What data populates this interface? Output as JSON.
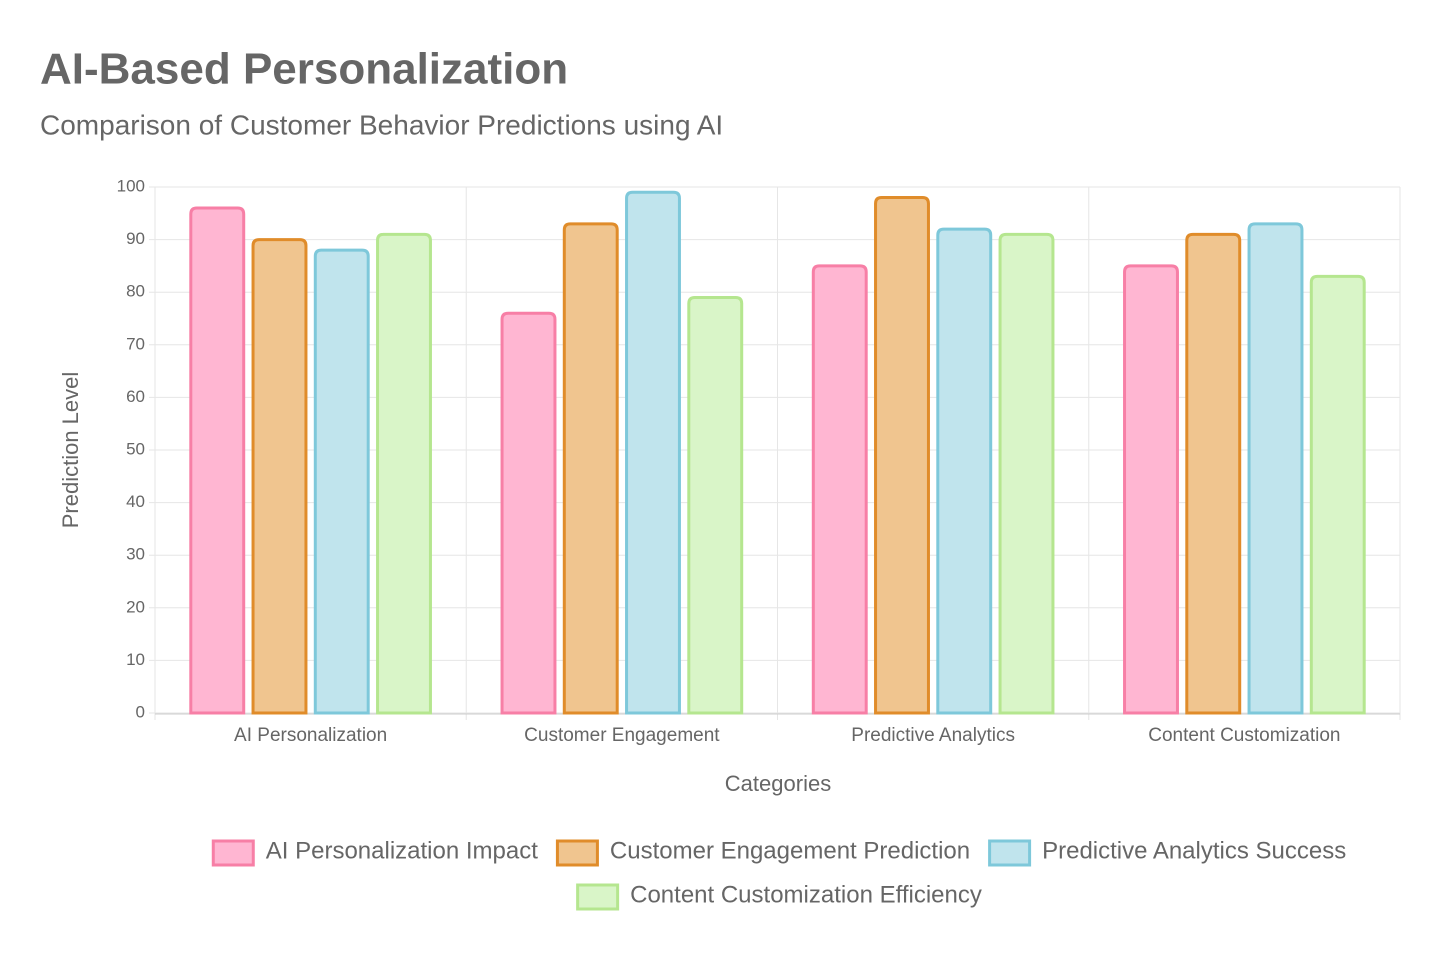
{
  "chart_data": {
    "type": "bar",
    "title": "AI-Based Personalization",
    "subtitle": "Comparison of Customer Behavior Predictions using AI",
    "x_label": "Categories",
    "y_label": "Prediction Level",
    "categories": [
      "AI Personalization",
      "Customer Engagement",
      "Predictive Analytics",
      "Content Customization"
    ],
    "series": [
      {
        "name": "AI Personalization Impact",
        "color": "#ffb6d2",
        "border": "#f77fa6",
        "values": [
          96,
          76,
          85,
          85
        ]
      },
      {
        "name": "Customer Engagement Prediction",
        "color": "#f0c58f",
        "border": "#e08c2a",
        "values": [
          90,
          93,
          98,
          91
        ]
      },
      {
        "name": "Predictive Analytics Success",
        "color": "#c0e4ed",
        "border": "#7ec8da",
        "values": [
          88,
          99,
          92,
          93
        ]
      },
      {
        "name": "Content Customization Efficiency",
        "color": "#d9f5c8",
        "border": "#b5e68f",
        "values": [
          91,
          79,
          91,
          83
        ]
      }
    ],
    "ylim": [
      0,
      100
    ],
    "yticks": [
      0,
      10,
      20,
      30,
      40,
      50,
      60,
      70,
      80,
      90,
      100
    ],
    "grid": true,
    "legend": "bottom"
  }
}
